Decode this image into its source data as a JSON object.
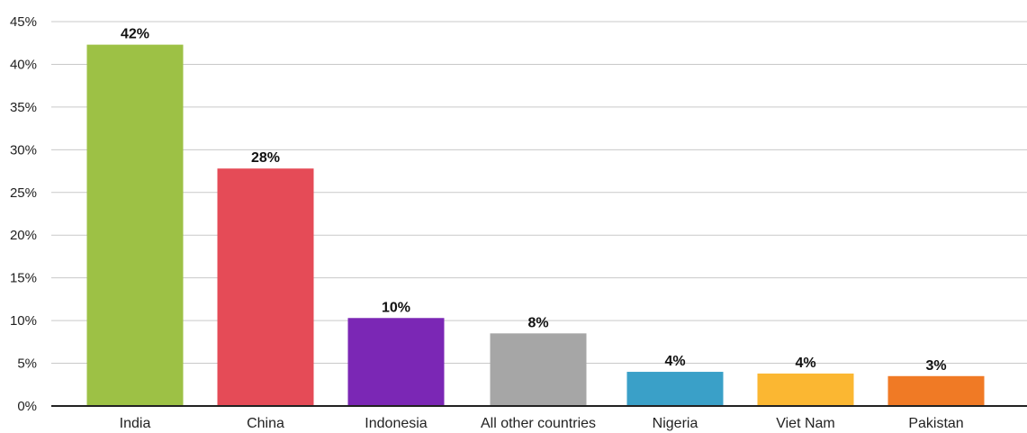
{
  "chart_data": {
    "type": "bar",
    "title": "",
    "xlabel": "",
    "ylabel": "",
    "categories": [
      "India",
      "China",
      "Indonesia",
      "All other countries",
      "Nigeria",
      "Viet Nam",
      "Pakistan"
    ],
    "values": [
      42.3,
      27.8,
      10.3,
      8.5,
      4.0,
      3.8,
      3.5
    ],
    "data_labels": [
      "42%",
      "28%",
      "10%",
      "8%",
      "4%",
      "4%",
      "3%"
    ],
    "colors": [
      "#9dc145",
      "#e54b57",
      "#7b27b5",
      "#a6a6a6",
      "#3aa0c8",
      "#fbb732",
      "#f07a25"
    ],
    "ylim": [
      0,
      45
    ],
    "y_ticks": [
      0,
      5,
      10,
      15,
      20,
      25,
      30,
      35,
      40,
      45
    ],
    "y_tick_labels": [
      "0%",
      "5%",
      "10%",
      "15%",
      "20%",
      "25%",
      "30%",
      "35%",
      "40%",
      "45%"
    ],
    "grid": true,
    "legend": "none"
  }
}
